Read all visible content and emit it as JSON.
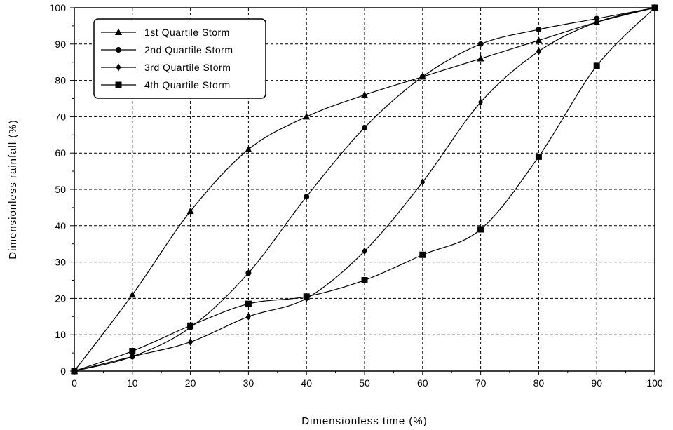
{
  "chart_data": {
    "type": "line",
    "xlabel": "Dimensionless time (%)",
    "ylabel": "Dimensionless rainfall (%)",
    "xlim": [
      0,
      100
    ],
    "ylim": [
      0,
      100
    ],
    "xticks": [
      0,
      10,
      20,
      30,
      40,
      50,
      60,
      70,
      80,
      90,
      100
    ],
    "yticks": [
      0,
      10,
      20,
      30,
      40,
      50,
      60,
      70,
      80,
      90,
      100
    ],
    "grid": true,
    "legend_position": "top-left",
    "x": [
      0,
      10,
      20,
      30,
      40,
      50,
      60,
      70,
      80,
      90,
      100
    ],
    "series": [
      {
        "name": "1st  Quartile Storm",
        "marker": "triangle",
        "values": [
          0,
          21,
          44,
          61,
          70,
          76,
          81,
          86,
          91,
          96,
          100
        ]
      },
      {
        "name": "2nd Quartile Storm",
        "marker": "circle",
        "values": [
          0,
          4,
          12,
          27,
          48,
          67,
          81,
          90,
          94,
          97,
          100
        ]
      },
      {
        "name": "3rd  Quartile Storm",
        "marker": "diamond",
        "values": [
          0,
          4,
          8,
          15,
          20,
          33,
          52,
          74,
          88,
          96,
          100
        ]
      },
      {
        "name": "4th  Quartile Storm",
        "marker": "square",
        "values": [
          0,
          5.5,
          12.5,
          18.5,
          20.5,
          25,
          32,
          39,
          59,
          84,
          100
        ]
      }
    ]
  }
}
